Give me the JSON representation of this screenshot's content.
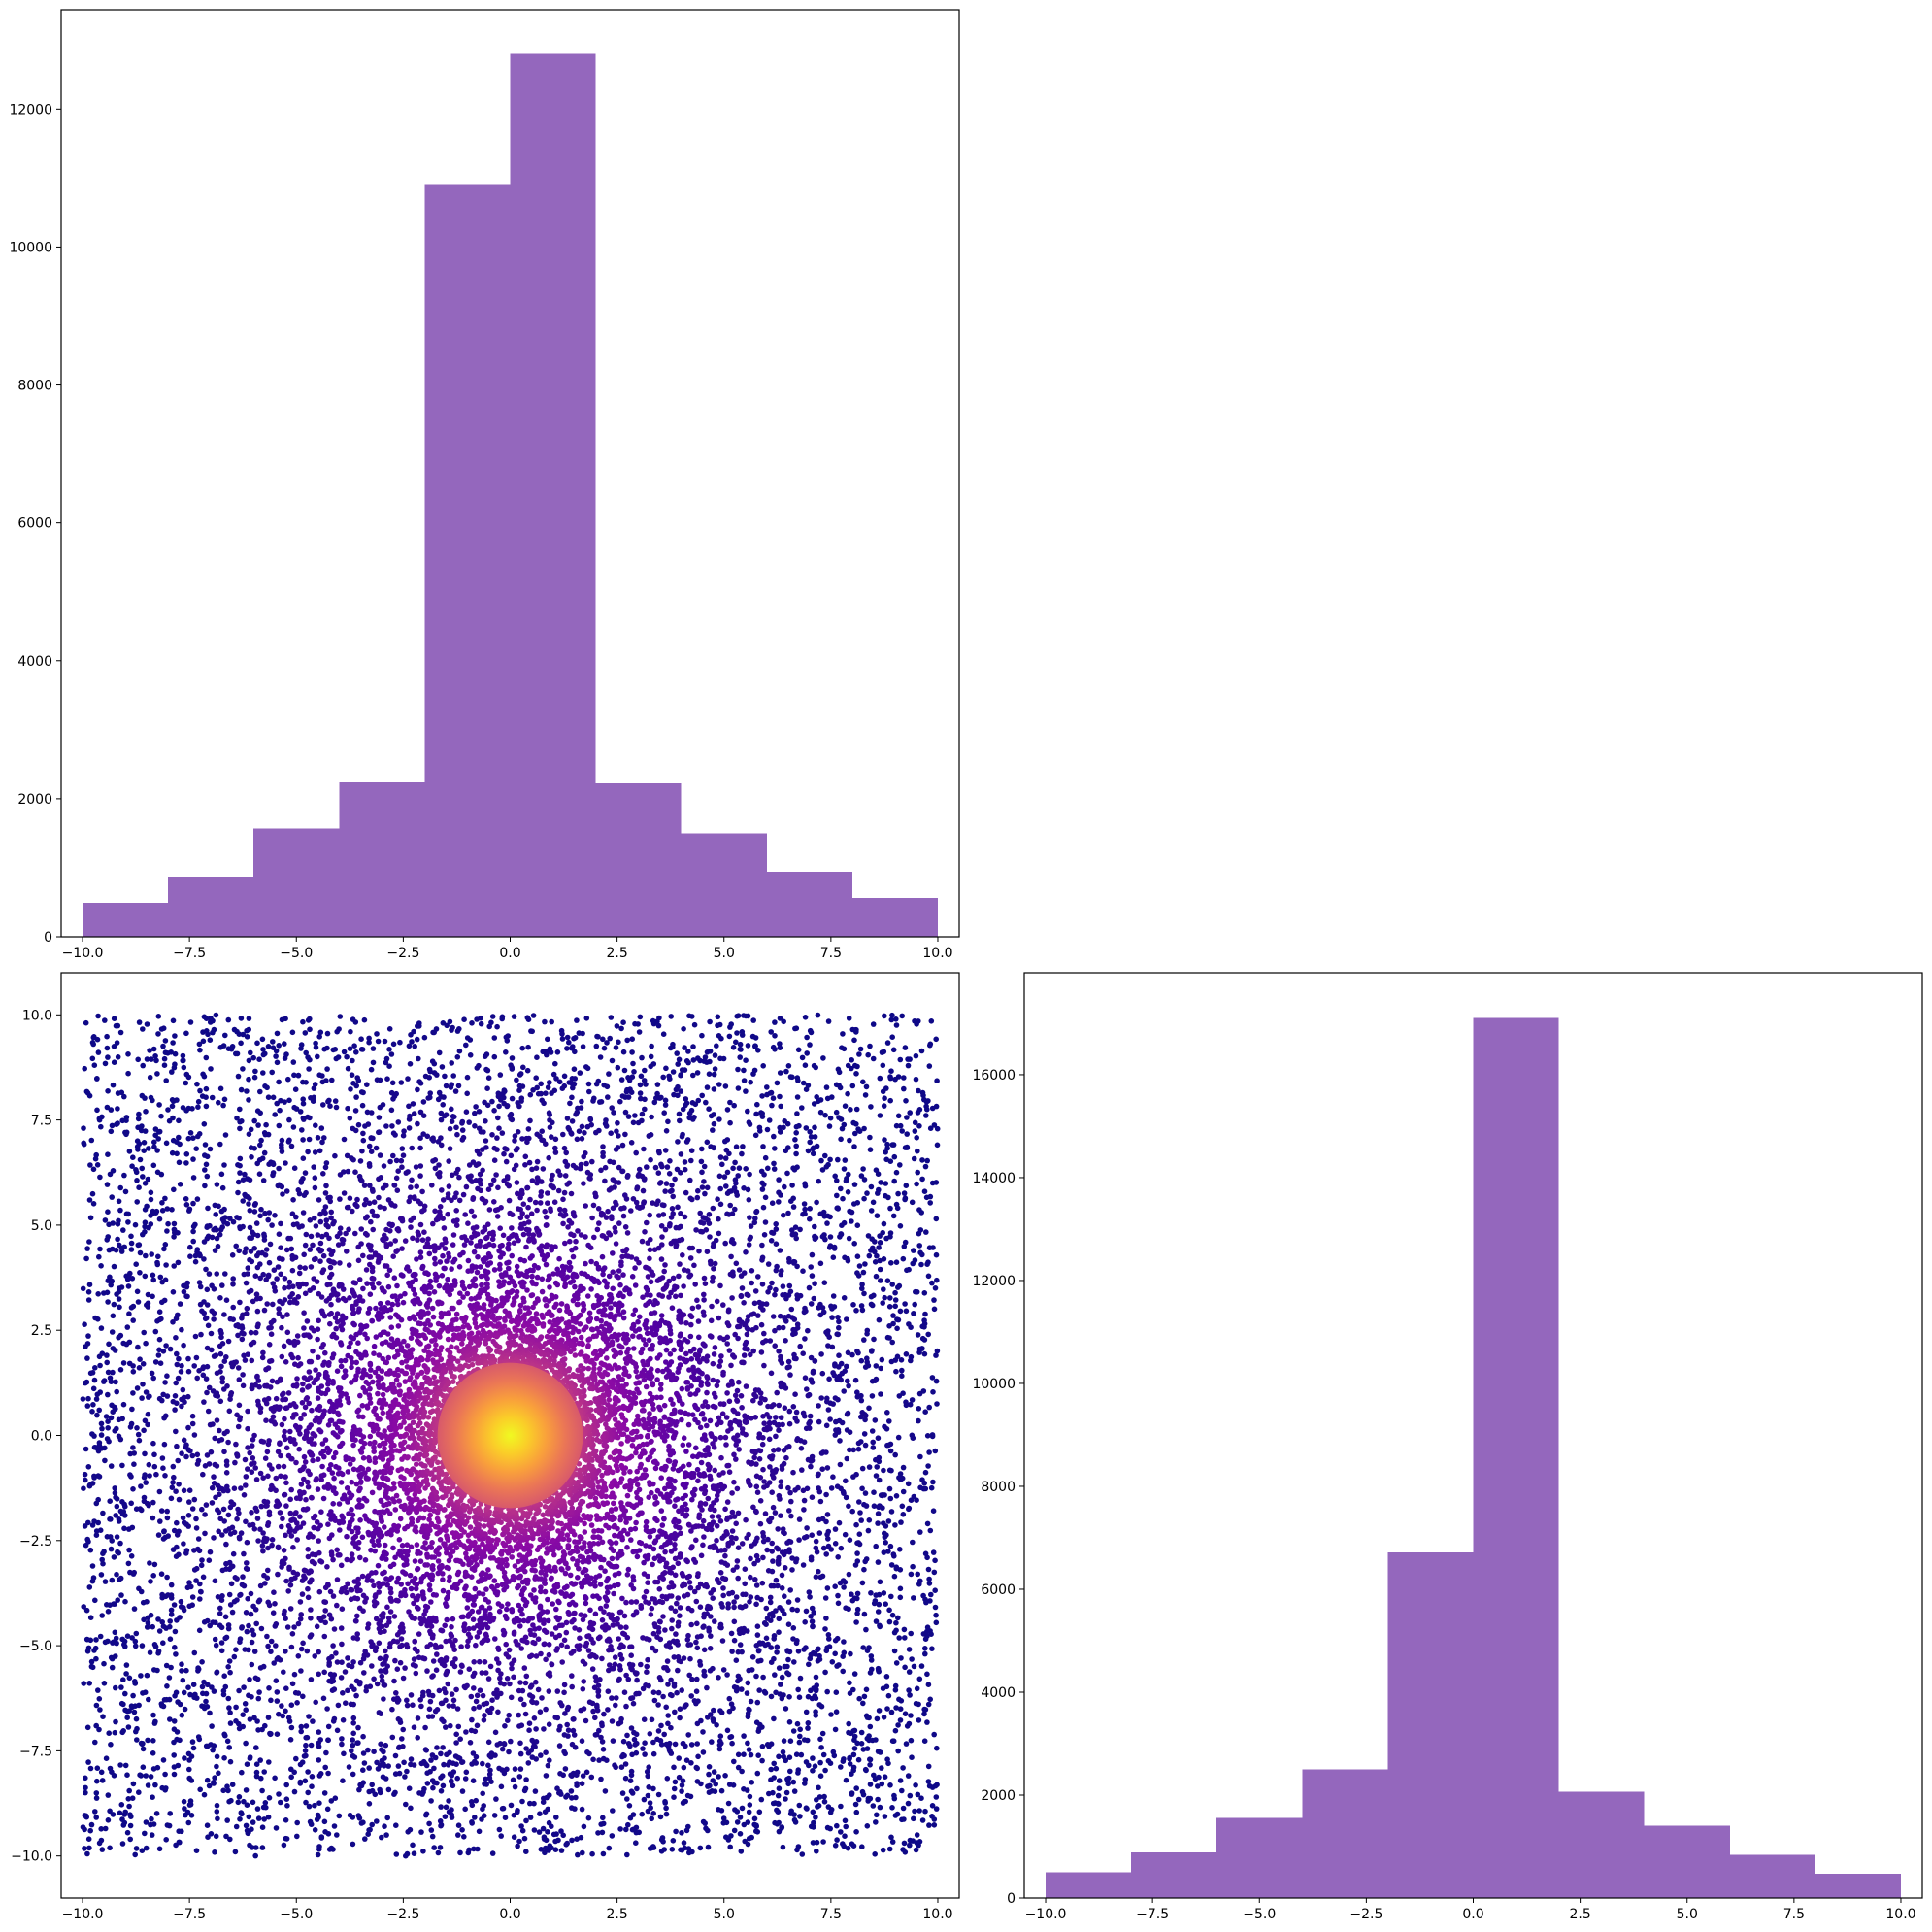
{
  "colors": {
    "bar": "#9467bd",
    "axes": "#000000",
    "scatter_colormap": "plasma"
  },
  "chart_data": [
    {
      "id": "top-histogram",
      "type": "bar",
      "title": "",
      "xlabel": "",
      "ylabel": "",
      "xlim": [
        -10.5,
        10.5
      ],
      "ylim": [
        0,
        13440
      ],
      "bin_edges": [
        -10,
        -8,
        -6,
        -4,
        -2,
        0,
        2,
        4,
        6,
        8,
        10
      ],
      "values": [
        490,
        870,
        1570,
        2250,
        10900,
        12800,
        2240,
        1500,
        940,
        560
      ],
      "xticks": [
        -10,
        -7.5,
        -5,
        -2.5,
        0,
        2.5,
        5,
        7.5,
        10
      ],
      "xtick_labels": [
        "−10.0",
        "−7.5",
        "−5.0",
        "−2.5",
        "0.0",
        "2.5",
        "5.0",
        "7.5",
        "10.0"
      ],
      "yticks": [
        0,
        2000,
        4000,
        6000,
        8000,
        10000,
        12000
      ],
      "ytick_labels": [
        "0",
        "2000",
        "4000",
        "6000",
        "8000",
        "10000",
        "12000"
      ]
    },
    {
      "id": "scatter",
      "type": "scatter",
      "title": "",
      "xlabel": "",
      "ylabel": "",
      "xlim": [
        -10.5,
        10.5
      ],
      "ylim": [
        -11,
        11
      ],
      "n_points": 14000,
      "x_range": [
        -10,
        10
      ],
      "y_range": [
        -10,
        10
      ],
      "color_by": "density around (0, 0)",
      "colormap": "plasma",
      "dense_core_center": [
        0,
        0
      ],
      "dense_core_radius": 1.7,
      "xticks": [
        -10,
        -7.5,
        -5,
        -2.5,
        0,
        2.5,
        5,
        7.5,
        10
      ],
      "xtick_labels": [
        "−10.0",
        "−7.5",
        "−5.0",
        "−2.5",
        "0.0",
        "2.5",
        "5.0",
        "7.5",
        "10.0"
      ],
      "yticks": [
        -10,
        -7.5,
        -5,
        -2.5,
        0,
        2.5,
        5,
        7.5,
        10
      ],
      "ytick_labels": [
        "−10.0",
        "−7.5",
        "−5.0",
        "−2.5",
        "0.0",
        "2.5",
        "5.0",
        "7.5",
        "10.0"
      ]
    },
    {
      "id": "right-histogram",
      "type": "bar",
      "title": "",
      "xlabel": "",
      "ylabel": "",
      "xlim": [
        -10.5,
        10.5
      ],
      "ylim": [
        0,
        17980
      ],
      "bin_edges": [
        -10,
        -8,
        -6,
        -4,
        -2,
        0,
        2,
        4,
        6,
        8,
        10
      ],
      "values": [
        500,
        890,
        1560,
        2500,
        6720,
        17100,
        2070,
        1410,
        840,
        470
      ],
      "xticks": [
        -10,
        -7.5,
        -5,
        -2.5,
        0,
        2.5,
        5,
        7.5,
        10
      ],
      "xtick_labels": [
        "−10.0",
        "−7.5",
        "−5.0",
        "−2.5",
        "0.0",
        "2.5",
        "5.0",
        "7.5",
        "10.0"
      ],
      "yticks": [
        0,
        2000,
        4000,
        6000,
        8000,
        10000,
        12000,
        14000,
        16000
      ],
      "ytick_labels": [
        "0",
        "2000",
        "4000",
        "6000",
        "8000",
        "10000",
        "12000",
        "14000",
        "16000"
      ]
    }
  ]
}
